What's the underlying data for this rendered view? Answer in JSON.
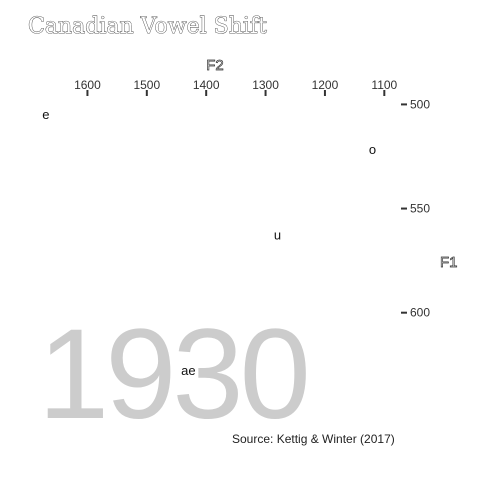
{
  "chart_data": {
    "type": "scatter",
    "title": "Canadian Vowel Shift",
    "xlabel": "F2",
    "ylabel": "F1",
    "x_axis": {
      "position": "top",
      "reversed": true,
      "lim": [
        1690,
        1050
      ],
      "ticks": [
        1600,
        1500,
        1400,
        1300,
        1200,
        1100
      ]
    },
    "y_axis": {
      "position": "right",
      "reversed": true,
      "lim": [
        495,
        640
      ],
      "ticks": [
        500,
        550,
        600
      ]
    },
    "points": [
      {
        "label": "e",
        "f2": 1670,
        "f1": 505
      },
      {
        "label": "o",
        "f2": 1120,
        "f1": 522
      },
      {
        "label": "u",
        "f2": 1280,
        "f1": 563
      },
      {
        "label": "ae",
        "f2": 1430,
        "f1": 628
      }
    ],
    "year": "1930",
    "source": "Source: Kettig & Winter (2017)",
    "grid": false,
    "legend": "none"
  }
}
